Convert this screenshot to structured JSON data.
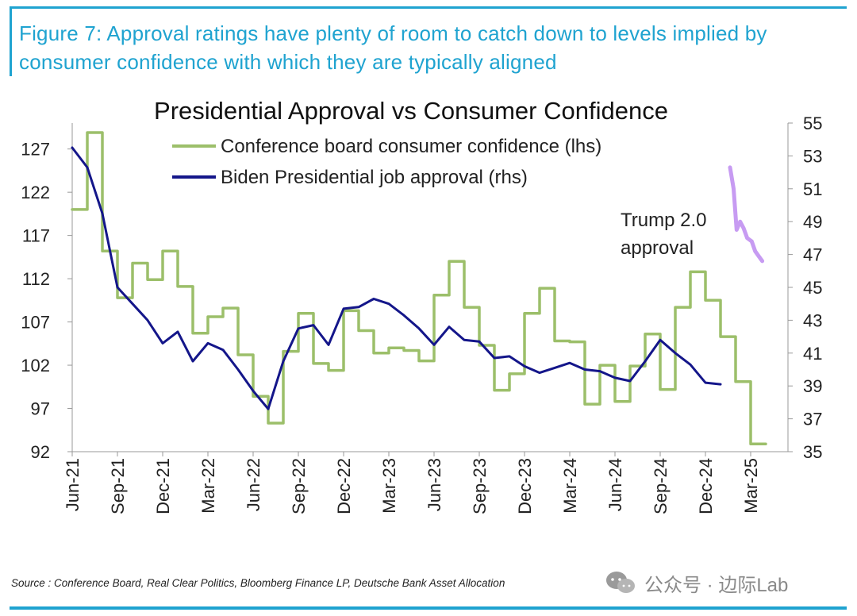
{
  "figure": {
    "title": "Figure 7: Approval ratings have plenty of room to catch down to levels implied by consumer confidence with which they are typically aligned",
    "source": "Source : Conference Board, Real Clear Politics, Bloomberg Finance LP, Deutsche Bank Asset Allocation",
    "watermark": "公众号 · 边际Lab",
    "accent_color": "#1fa3d0"
  },
  "chart_data": {
    "type": "line",
    "title": "Presidential Approval vs Consumer Confidence",
    "x_tick_labels": [
      "Jun-21",
      "Sep-21",
      "Dec-21",
      "Mar-22",
      "Jun-22",
      "Sep-22",
      "Dec-22",
      "Mar-23",
      "Jun-23",
      "Sep-23",
      "Dec-23",
      "Mar-24",
      "Jun-24",
      "Sep-24",
      "Dec-24",
      "Mar-25"
    ],
    "left_axis": {
      "ticks": [
        92,
        97,
        102,
        107,
        112,
        117,
        122,
        127
      ],
      "ylim": [
        92,
        130
      ]
    },
    "right_axis": {
      "ticks": [
        35,
        37,
        39,
        41,
        43,
        45,
        47,
        49,
        51,
        53,
        55
      ],
      "ylim": [
        35,
        55
      ]
    },
    "legend_position": "top-left",
    "annotation": "Trump 2.0 approval",
    "annotation_lines": [
      "Trump 2.0",
      "approval"
    ],
    "series": [
      {
        "name": "Conference board consumer confidence (lhs)",
        "axis": "left",
        "color": "#9cbf6a",
        "step": true,
        "x": [
          "2021-06",
          "2021-07",
          "2021-08",
          "2021-09",
          "2021-10",
          "2021-11",
          "2021-12",
          "2022-01",
          "2022-02",
          "2022-03",
          "2022-04",
          "2022-05",
          "2022-06",
          "2022-07",
          "2022-08",
          "2022-09",
          "2022-10",
          "2022-11",
          "2022-12",
          "2023-01",
          "2023-02",
          "2023-03",
          "2023-04",
          "2023-05",
          "2023-06",
          "2023-07",
          "2023-08",
          "2023-09",
          "2023-10",
          "2023-11",
          "2023-12",
          "2024-01",
          "2024-02",
          "2024-03",
          "2024-04",
          "2024-05",
          "2024-06",
          "2024-07",
          "2024-08",
          "2024-09",
          "2024-10",
          "2024-11",
          "2024-12",
          "2025-01",
          "2025-02",
          "2025-03"
        ],
        "values": [
          120.0,
          128.9,
          115.2,
          109.8,
          113.8,
          111.9,
          115.2,
          111.1,
          105.7,
          107.6,
          108.6,
          103.2,
          98.4,
          95.3,
          103.6,
          108.0,
          102.2,
          101.4,
          108.3,
          106.0,
          103.4,
          104.0,
          103.7,
          102.5,
          110.1,
          114.0,
          108.7,
          104.3,
          99.1,
          101.0,
          108.0,
          110.9,
          104.8,
          104.7,
          97.5,
          102.0,
          97.8,
          101.9,
          105.6,
          99.2,
          108.7,
          112.8,
          109.5,
          105.3,
          100.1,
          92.9
        ]
      },
      {
        "name": "Biden Presidential job approval (rhs)",
        "axis": "right",
        "color": "#14168a",
        "x": [
          "2021-06",
          "2021-07",
          "2021-08",
          "2021-09",
          "2021-10",
          "2021-11",
          "2021-12",
          "2022-01",
          "2022-02",
          "2022-03",
          "2022-04",
          "2022-05",
          "2022-06",
          "2022-07",
          "2022-08",
          "2022-09",
          "2022-10",
          "2022-11",
          "2022-12",
          "2023-01",
          "2023-02",
          "2023-03",
          "2023-04",
          "2023-05",
          "2023-06",
          "2023-07",
          "2023-08",
          "2023-09",
          "2023-10",
          "2023-11",
          "2023-12",
          "2024-01",
          "2024-02",
          "2024-03",
          "2024-04",
          "2024-05",
          "2024-06",
          "2024-07",
          "2024-08",
          "2024-09",
          "2024-10",
          "2024-11",
          "2024-12",
          "2025-01"
        ],
        "values": [
          53.5,
          52.3,
          49.5,
          45.0,
          44.0,
          43.0,
          41.6,
          42.3,
          40.5,
          41.6,
          41.2,
          40.0,
          38.7,
          37.6,
          40.5,
          42.5,
          42.7,
          41.5,
          43.7,
          43.8,
          44.3,
          44.0,
          43.3,
          42.5,
          41.5,
          42.6,
          41.8,
          41.7,
          40.7,
          40.8,
          40.2,
          39.8,
          40.1,
          40.4,
          40.0,
          39.9,
          39.5,
          39.3,
          40.5,
          41.8,
          41.0,
          40.3,
          39.2,
          39.1
        ]
      },
      {
        "name": "Trump 2.0 approval",
        "axis": "right",
        "color": "#c79bf2",
        "x": [
          "2025-01-20",
          "2025-01-27",
          "2025-02-03",
          "2025-02-10",
          "2025-02-17",
          "2025-02-24",
          "2025-03-03",
          "2025-03-10",
          "2025-03-17",
          "2025-03-24"
        ],
        "values": [
          52.3,
          51.0,
          48.5,
          49.0,
          48.6,
          48.0,
          47.8,
          47.2,
          46.9,
          46.6
        ]
      }
    ]
  }
}
